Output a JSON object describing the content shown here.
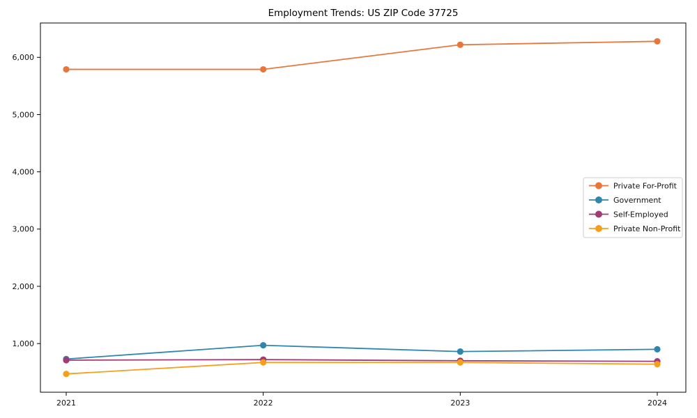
{
  "chart_data": {
    "type": "line",
    "title": "Employment Trends: US ZIP Code 37725",
    "xlabel": "",
    "ylabel": "",
    "x": [
      2021,
      2022,
      2023,
      2024
    ],
    "x_tick_labels": [
      "2021",
      "2022",
      "2023",
      "2024"
    ],
    "series": [
      {
        "name": "Private For-Profit",
        "color": "#E8763B",
        "values": [
          5790,
          5790,
          6220,
          6280
        ]
      },
      {
        "name": "Government",
        "color": "#2E86AB",
        "values": [
          730,
          970,
          860,
          900
        ]
      },
      {
        "name": "Self-Employed",
        "color": "#A23B72",
        "values": [
          710,
          720,
          700,
          690
        ]
      },
      {
        "name": "Private Non-Profit",
        "color": "#F5A01B",
        "values": [
          470,
          670,
          670,
          640
        ]
      }
    ],
    "y_ticks": [
      1000,
      2000,
      3000,
      4000,
      5000,
      6000
    ],
    "y_tick_labels": [
      "1,000",
      "2,000",
      "3,000",
      "4,000",
      "5,000",
      "6,000"
    ],
    "ylim": [
      150,
      6600
    ],
    "grid": false,
    "legend_position": "right-middle",
    "legend_entries": [
      "Private For-Profit",
      "Government",
      "Self-Employed",
      "Private Non-Profit"
    ],
    "axis_color": "#000000",
    "tick_label_color": "#111111",
    "marker": "circle"
  }
}
